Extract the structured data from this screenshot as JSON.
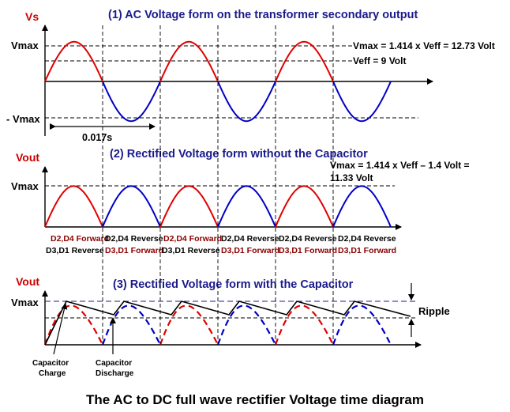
{
  "panel1": {
    "title": "(1)  AC Voltage form on the transformer secondary output",
    "y_axis_label": "Vs",
    "vmax_label": "Vmax",
    "neg_vmax_label": "- Vmax",
    "period_label": "0.017s",
    "annotation_vmax": "Vmax = 1.414 x Veff = 12.73 Volt",
    "annotation_veff": "Veff = 9 Volt"
  },
  "panel2": {
    "title": "(2)  Rectified Voltage form without the Capacitor",
    "y_axis_label": "Vout",
    "vmax_label": "Vmax",
    "annotation_line1": "Vmax = 1.414 x Veff – 1.4 Volt =",
    "annotation_line2": "11.33 Volt",
    "diode_states": [
      {
        "top": "D2,D4 Forward",
        "bottom": "D3,D1 Reverse",
        "top_color": "#8b0000",
        "bottom_color": "#000000"
      },
      {
        "top": "D2,D4 Reverse",
        "bottom": "D3,D1 Forward",
        "top_color": "#000000",
        "bottom_color": "#8b0000"
      },
      {
        "top": "D2,D4 Forward",
        "bottom": "D3,D1 Reverse",
        "top_color": "#8b0000",
        "bottom_color": "#000000"
      },
      {
        "top": "D2,D4 Reverse",
        "bottom": "D3,D1 Forward",
        "top_color": "#000000",
        "bottom_color": "#8b0000"
      },
      {
        "top": "D2,D4 Reverse",
        "bottom": "D3,D1 Forward",
        "top_color": "#000000",
        "bottom_color": "#8b0000"
      },
      {
        "top": "D2,D4 Reverse",
        "bottom": "D3,D1 Forward",
        "top_color": "#000000",
        "bottom_color": "#8b0000"
      }
    ]
  },
  "panel3": {
    "title": "(3)  Rectified Voltage form with the Capacitor",
    "y_axis_label": "Vout",
    "vmax_label": "Vmax",
    "ripple_label": "Ripple",
    "charge_label_line1": "Capacitor",
    "charge_label_line2": "Charge",
    "discharge_label_line1": "Capacitor",
    "discharge_label_line2": "Discharge"
  },
  "caption": "The AC to DC full wave rectifier Voltage time diagram",
  "colors": {
    "positive_half": "#e00000",
    "negative_half": "#0000c8",
    "title": "#1a1a8c",
    "axis_label": "#cc0000"
  }
}
